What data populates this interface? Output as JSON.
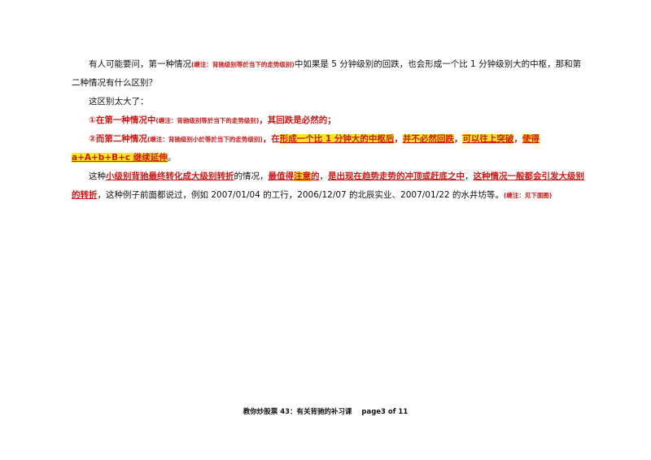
{
  "p1": {
    "a": "有人可能要问，第一种情况",
    "note": "(缠注：背驰级别等於当下的走势级别)",
    "b": "中如果是 5 分钟级别的回跌，也会形成一个比 1 分钟级别大的中枢，那和第二种情况有什么区别？"
  },
  "p2": {
    "text": "这区别太大了："
  },
  "p3": {
    "a": "①在第一种情况中",
    "note": "(缠注：背驰级别等於当下的走势级别)",
    "b": "，其回跌是必然的；"
  },
  "p4": {
    "a": "②而",
    "b": "第二种情况",
    "note": "(缠注：背驰级别小於等於当下的走势级别)",
    "c": "，",
    "d": "在",
    "e": "形成一个比 1 分钟大的中枢后",
    "f": "，",
    "g": "并不必然回跌",
    "h": "，",
    "i": "可以往上突破",
    "j": "，",
    "k": "使得 a+A+b+B+c 继续延伸",
    "l": "。"
  },
  "p5": {
    "a": "这种",
    "b": "小级别背驰最终转化成大级别转折",
    "c": "的情况，",
    "d": "最值得",
    "e": "注意",
    "f": "的",
    "g": "，",
    "h": "是出现在趋势走势的冲顶或赶底之中",
    "i": "，",
    "j": "这种情况一般都会引发大级别的转折",
    "k": "，这种例子前面都说过，例如 2007/01/04 的工行，2006/12/07 的北辰实业、2007/01/22 的水井坊等。",
    "note": "(缠注：见下面图)"
  },
  "footer": {
    "text": "教你炒股票 43：有关背驰的补习课    page3 of 11"
  }
}
